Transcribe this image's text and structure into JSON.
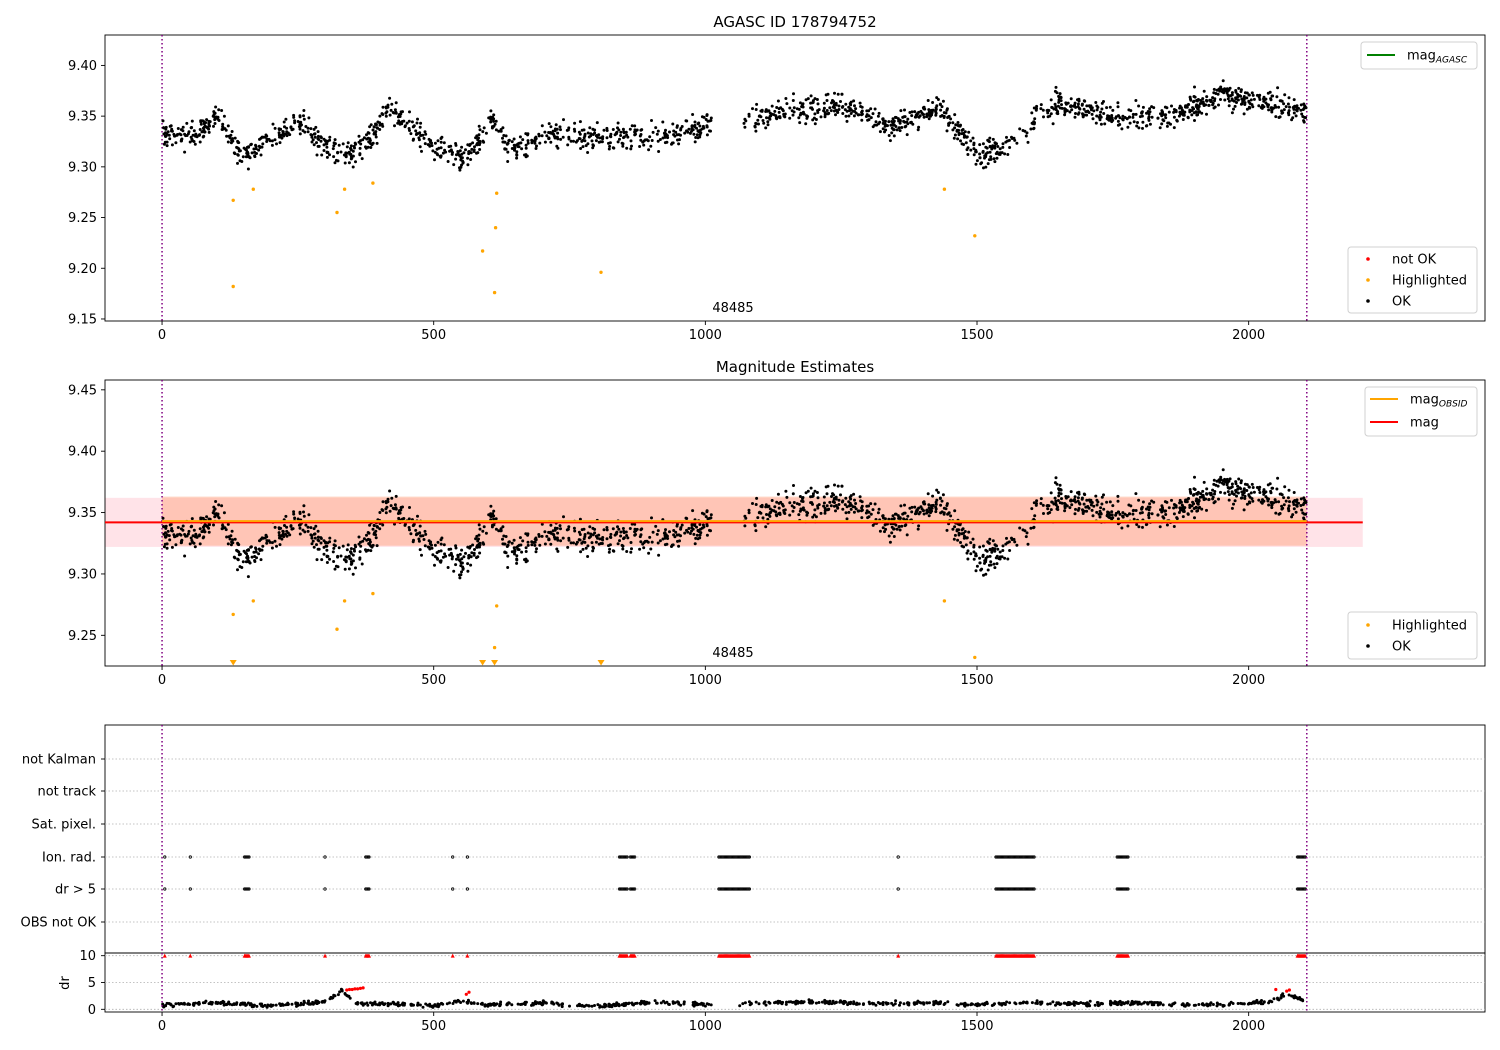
{
  "figure": {
    "title_top": "AGASC ID 178794752",
    "title_mid": "Magnitude Estimates",
    "obsid_label": "48485"
  },
  "colors": {
    "ok": "#000000",
    "highlighted": "#ffa500",
    "not_ok": "#ff0000",
    "mag_agasc_line": "#008000",
    "mag_obsid_line": "#ffa500",
    "mag_line": "#ff0000",
    "band_pink": "#ffc0cb",
    "band_orange": "#ffa07a",
    "vline": "#800080",
    "grid": "#b0b0b0"
  },
  "chart_data": [
    {
      "panel": "top",
      "type": "scatter",
      "title": "AGASC ID 178794752",
      "xlim": [
        -105,
        2435
      ],
      "ylim": [
        9.148,
        9.43
      ],
      "xticks": [
        0,
        500,
        1000,
        1500,
        2000
      ],
      "yticks": [
        9.15,
        9.2,
        9.25,
        9.3,
        9.35,
        9.4
      ],
      "obs_boundaries": [
        0,
        2107
      ],
      "annotation": "48485",
      "legend_lines": [
        {
          "label": "mag",
          "sub": "AGASC",
          "color": "#008000"
        }
      ],
      "legend_points": [
        {
          "label": "not OK",
          "color": "#ff0000"
        },
        {
          "label": "Highlighted",
          "color": "#ffa500"
        },
        {
          "label": "OK",
          "color": "#000000"
        }
      ],
      "ok_trend": {
        "x": [
          0,
          60,
          100,
          150,
          250,
          300,
          350,
          420,
          460,
          500,
          560,
          610,
          640,
          700,
          800,
          900,
          1000,
          1150,
          1250,
          1350,
          1430,
          1500,
          1550,
          1650,
          1750,
          1850,
          1950,
          2050,
          2107
        ],
        "y": [
          9.335,
          9.33,
          9.35,
          9.31,
          9.345,
          9.32,
          9.31,
          9.355,
          9.34,
          9.32,
          9.31,
          9.345,
          9.315,
          9.33,
          9.33,
          9.33,
          9.34,
          9.355,
          9.36,
          9.34,
          9.36,
          9.31,
          9.32,
          9.365,
          9.35,
          9.35,
          9.37,
          9.36,
          9.355
        ]
      },
      "highlighted": {
        "x": [
          131,
          131,
          168,
          322,
          336,
          388,
          590,
          612,
          614,
          616,
          808,
          1440,
          1496
        ],
        "y": [
          9.182,
          9.267,
          9.278,
          9.255,
          9.278,
          9.284,
          9.217,
          9.176,
          9.24,
          9.274,
          9.196,
          9.278,
          9.232
        ]
      },
      "not_ok": {
        "x": [],
        "y": []
      }
    },
    {
      "panel": "middle",
      "type": "scatter",
      "title": "Magnitude Estimates",
      "xlim": [
        -105,
        2435
      ],
      "ylim": [
        9.225,
        9.458
      ],
      "xticks": [
        0,
        500,
        1000,
        1500,
        2000
      ],
      "yticks": [
        9.25,
        9.3,
        9.35,
        9.4,
        9.45
      ],
      "obs_boundaries": [
        0,
        2107
      ],
      "annotation": "48485",
      "mag": 9.342,
      "mag_obsid": 9.343,
      "mag_band": [
        9.322,
        9.362
      ],
      "mag_obsid_band": [
        9.323,
        9.363
      ],
      "mag_line_x": [
        -105,
        2210
      ],
      "mag_obsid_line_x": [
        0,
        2107
      ],
      "legend_lines": [
        {
          "label": "mag",
          "sub": "OBSID",
          "color": "#ffa500"
        },
        {
          "label": "mag",
          "sub": "",
          "color": "#ff0000"
        }
      ],
      "legend_points": [
        {
          "label": "Highlighted",
          "color": "#ffa500"
        },
        {
          "label": "OK",
          "color": "#000000"
        }
      ],
      "highlighted": {
        "x": [
          131,
          168,
          322,
          336,
          388,
          612,
          616,
          1440,
          1496
        ],
        "y": [
          9.267,
          9.278,
          9.255,
          9.278,
          9.284,
          9.24,
          9.274,
          9.278,
          9.232
        ]
      },
      "clipped_below": {
        "x": [
          131,
          590,
          612,
          808
        ]
      }
    },
    {
      "panel": "bottom",
      "type": "scatter",
      "xlim": [
        -105,
        2435
      ],
      "xticks": [
        0,
        500,
        1000,
        1500,
        2000
      ],
      "obs_boundaries": [
        0,
        2107
      ],
      "flag_rows": [
        "not Kalman",
        "not track",
        "Sat. pixel.",
        "Ion. rad.",
        "dr > 5",
        "OBS not OK"
      ],
      "flag_points": {
        "Ion. rad.": {
          "singles": [
            5,
            52,
            300,
            535,
            562,
            1355
          ],
          "ranges": [
            [
              152,
              160
            ],
            [
              375,
              382
            ],
            [
              842,
              856
            ],
            [
              862,
              870
            ],
            [
              1025,
              1082
            ],
            [
              1535,
              1605
            ],
            [
              1758,
              1778
            ],
            [
              2090,
              2105
            ]
          ]
        },
        "dr > 5": {
          "singles": [
            5,
            52,
            300,
            535,
            562,
            1355
          ],
          "ranges": [
            [
              152,
              160
            ],
            [
              375,
              382
            ],
            [
              842,
              856
            ],
            [
              862,
              870
            ],
            [
              1025,
              1082
            ],
            [
              1535,
              1605
            ],
            [
              1758,
              1778
            ],
            [
              2090,
              2105
            ]
          ]
        }
      },
      "dr_ylabel": "dr",
      "dr_ylim": [
        -0.5,
        10.5
      ],
      "dr_yticks": [
        0,
        5,
        10
      ],
      "dr_clipped_at": 10,
      "dr_clipped": {
        "singles": [
          5,
          52,
          300,
          535,
          562,
          1355
        ],
        "ranges": [
          [
            152,
            160
          ],
          [
            375,
            382
          ],
          [
            842,
            856
          ],
          [
            862,
            870
          ],
          [
            1025,
            1082
          ],
          [
            1535,
            1605
          ],
          [
            1758,
            1778
          ],
          [
            2090,
            2105
          ]
        ]
      },
      "dr_trend": {
        "x": [
          0,
          100,
          200,
          300,
          330,
          360,
          400,
          500,
          550,
          600,
          700,
          800,
          900,
          1000,
          1100,
          1200,
          1300,
          1400,
          1500,
          1600,
          1700,
          1800,
          1900,
          2000,
          2040,
          2070,
          2107
        ],
        "y": [
          0.8,
          1.2,
          0.6,
          1.4,
          3.5,
          1.0,
          1.1,
          0.7,
          1.5,
          0.9,
          1.2,
          0.6,
          1.3,
          0.8,
          1.1,
          1.4,
          1.0,
          1.2,
          0.9,
          1.3,
          1.0,
          1.2,
          0.8,
          1.1,
          1.5,
          2.8,
          1.6
        ]
      },
      "dr_red_points": {
        "x": [
          340,
          345,
          350,
          355,
          360,
          365,
          370,
          560,
          565,
          2050,
          2070,
          2075
        ],
        "y": [
          3.6,
          3.7,
          3.7,
          3.8,
          3.8,
          3.9,
          4.0,
          2.8,
          3.2,
          3.7,
          3.4,
          3.6
        ]
      }
    }
  ]
}
